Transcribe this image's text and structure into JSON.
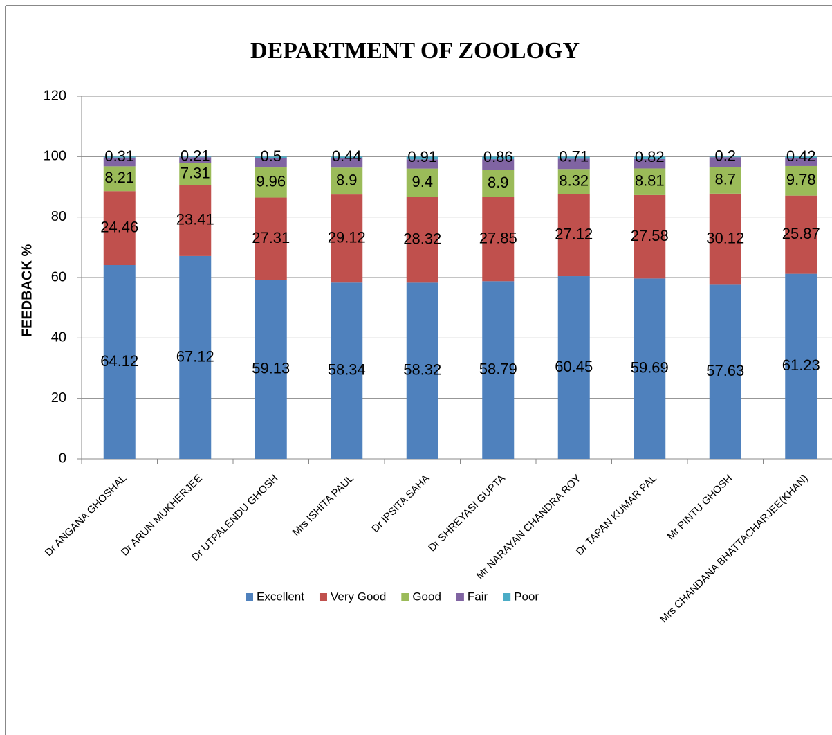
{
  "chart_data": {
    "type": "stacked_bar",
    "title": "DEPARTMENT OF ZOOLOGY",
    "y_label": "FEEDBACK %",
    "categories": [
      "Dr ANGANA GHOSHAL",
      "Dr ARUN MUKHERJEE",
      "Dr UTPALENDU GHOSH",
      "Mrs ISHITA PAUL",
      "Dr IPSITA SAHA",
      "Dr SHREYASI  GUPTA",
      "Mr NARAYAN  CHANDRA ROY",
      "Dr TAPAN  KUMAR PAL",
      "Mr PINTU GHOSH",
      "Mrs CHANDANA  BHATTACHARJEE(KHAN)"
    ],
    "series": [
      {
        "name": "Excellent",
        "color": "#4f81bd",
        "show_labels": true,
        "values": [
          64.12,
          67.12,
          59.13,
          58.34,
          58.32,
          58.79,
          60.45,
          59.69,
          57.63,
          61.23
        ]
      },
      {
        "name": "Very Good",
        "color": "#c0504d",
        "show_labels": true,
        "values": [
          24.46,
          23.41,
          27.31,
          29.12,
          28.32,
          27.85,
          27.12,
          27.58,
          30.12,
          25.87
        ]
      },
      {
        "name": "Good",
        "color": "#9bbb59",
        "show_labels": true,
        "values": [
          8.21,
          7.31,
          9.96,
          8.9,
          9.4,
          8.9,
          8.32,
          8.81,
          8.7,
          9.78
        ]
      },
      {
        "name": "Fair",
        "color": "#8064a2",
        "show_labels": false,
        "values": [
          2.9,
          1.95,
          3.1,
          3.2,
          3.05,
          3.6,
          3.4,
          3.1,
          3.35,
          2.7
        ]
      },
      {
        "name": "Poor",
        "color": "#4bacc6",
        "show_labels": true,
        "values": [
          0.31,
          0.21,
          0.5,
          0.44,
          0.91,
          0.86,
          0.71,
          0.82,
          0.2,
          0.42
        ]
      }
    ],
    "ylim": [
      0,
      120
    ],
    "yticks": [
      0,
      20,
      40,
      60,
      80,
      100,
      120
    ],
    "grid": true,
    "legend": "bottom"
  }
}
